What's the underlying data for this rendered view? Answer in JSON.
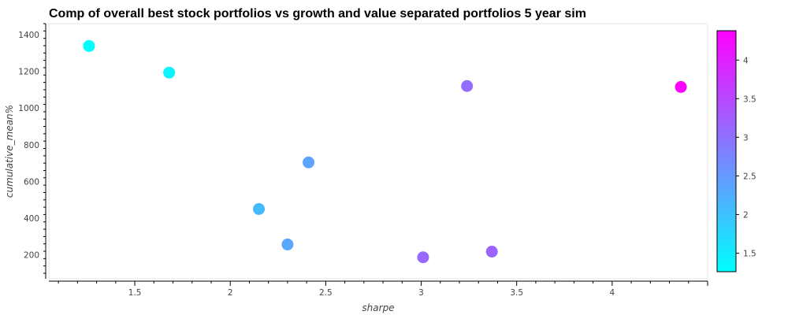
{
  "chart_data": {
    "type": "scatter",
    "title": "Comp of overall best stock portfolios vs growth and value separated portfolios 5 year sim",
    "xlabel": "sharpe",
    "ylabel": "cumulative_mean%",
    "xlim": [
      1.05,
      4.5
    ],
    "ylim": [
      70,
      1460
    ],
    "x_ticks": [
      "1.5",
      "2",
      "2.5",
      "3",
      "3.5",
      "4"
    ],
    "y_ticks": [
      "200",
      "400",
      "600",
      "800",
      "1000",
      "1200",
      "1400"
    ],
    "points": [
      {
        "x": 1.26,
        "y": 1338,
        "c": 1.28
      },
      {
        "x": 1.68,
        "y": 1193,
        "c": 1.4
      },
      {
        "x": 2.15,
        "y": 450,
        "c": 2.1
      },
      {
        "x": 2.3,
        "y": 257,
        "c": 2.35
      },
      {
        "x": 2.41,
        "y": 704,
        "c": 2.4
      },
      {
        "x": 3.01,
        "y": 187,
        "c": 3.1
      },
      {
        "x": 3.24,
        "y": 1120,
        "c": 3.05
      },
      {
        "x": 3.37,
        "y": 218,
        "c": 3.15
      },
      {
        "x": 4.36,
        "y": 1115,
        "c": 4.35
      }
    ],
    "colorbar": {
      "range": [
        1.26,
        4.38
      ],
      "ticks": [
        "1.5",
        "2",
        "2.5",
        "3",
        "3.5",
        "4"
      ],
      "colormap": "cool",
      "colors": [
        "#00ffff",
        "#ff00ff"
      ]
    },
    "grid": false
  }
}
